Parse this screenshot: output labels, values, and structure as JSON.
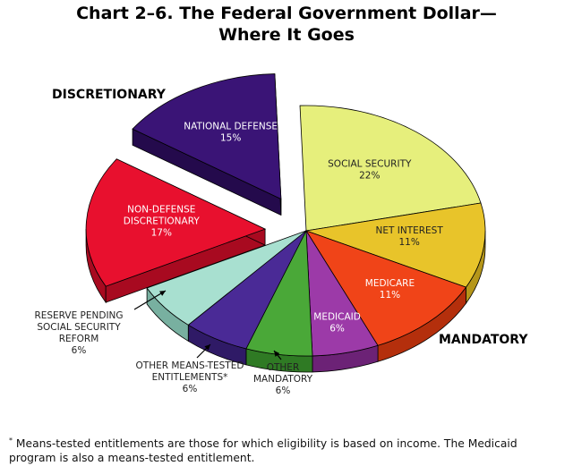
{
  "title": {
    "line1": "Chart 2–6.   The Federal Government Dollar—",
    "line2": "Where It Goes"
  },
  "group_labels": {
    "discretionary": "DISCRETIONARY",
    "mandatory": "MANDATORY"
  },
  "footnote": {
    "marker": "*",
    "text": "Means-tested entitlements are those for which eligibility is based on income. The Medicaid program is also a means-tested entitlement."
  },
  "chart_data": {
    "type": "pie",
    "style": "3d exploded",
    "unit": "%",
    "slices": [
      {
        "id": "social-security",
        "label": "SOCIAL SECURITY",
        "value": 22,
        "group": "mandatory",
        "color": "#e6ef7c",
        "side": "#b7be5c",
        "label_color": "#222222",
        "label_inside": true
      },
      {
        "id": "net-interest",
        "label": "NET INTEREST",
        "value": 11,
        "group": "mandatory",
        "color": "#e8c42a",
        "side": "#b5961a",
        "label_color": "#222222",
        "label_inside": true
      },
      {
        "id": "medicare",
        "label": "MEDICARE",
        "value": 11,
        "group": "mandatory",
        "color": "#f04418",
        "side": "#b42f0c",
        "label_color": "#ffffff",
        "label_inside": true
      },
      {
        "id": "medicaid",
        "label": "MEDICAID",
        "value": 6,
        "group": "mandatory",
        "color": "#9c3aa8",
        "side": "#6c2276",
        "label_color": "#ffffff",
        "label_inside": true
      },
      {
        "id": "other-mandatory",
        "label": "OTHER MANDATORY",
        "value": 6,
        "group": "mandatory",
        "color": "#4aa838",
        "side": "#2f7a24",
        "label_color": "#222222",
        "label_inside": false
      },
      {
        "id": "other-means-tested",
        "label": "OTHER MEANS-TESTED ENTITLEMENTS*",
        "value": 6,
        "group": "mandatory",
        "color": "#4a2a96",
        "side": "#2f1a66",
        "label_color": "#222222",
        "label_inside": false
      },
      {
        "id": "reserve-pending",
        "label": "RESERVE PENDING SOCIAL SECURITY REFORM",
        "value": 6,
        "group": "reserve",
        "color": "#a8e0d0",
        "side": "#78b0a0",
        "label_color": "#222222",
        "label_inside": false
      },
      {
        "id": "non-defense",
        "label": "NON-DEFENSE DISCRETIONARY",
        "value": 17,
        "group": "discretionary",
        "color": "#e8102e",
        "side": "#a80a20",
        "label_color": "#ffffff",
        "label_inside": true
      },
      {
        "id": "national-defense",
        "label": "NATIONAL DEFENSE",
        "value": 15,
        "group": "discretionary",
        "color": "#3a1476",
        "side": "#240a4c",
        "label_color": "#ffffff",
        "label_inside": true
      }
    ]
  }
}
